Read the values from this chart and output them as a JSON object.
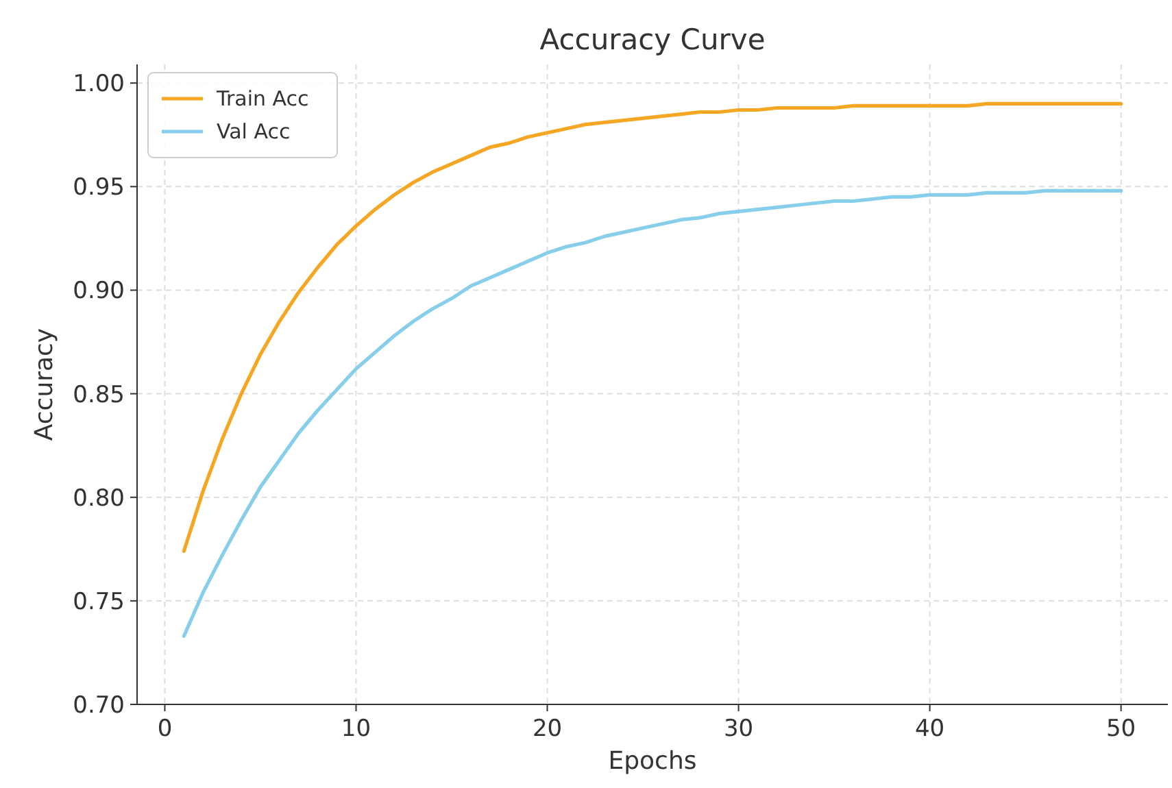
{
  "chart_data": {
    "type": "line",
    "title": "Accuracy Curve",
    "xlabel": "Epochs",
    "ylabel": "Accuracy",
    "x": [
      1,
      2,
      3,
      4,
      5,
      6,
      7,
      8,
      9,
      10,
      11,
      12,
      13,
      14,
      15,
      16,
      17,
      18,
      19,
      20,
      21,
      22,
      23,
      24,
      25,
      26,
      27,
      28,
      29,
      30,
      31,
      32,
      33,
      34,
      35,
      36,
      37,
      38,
      39,
      40,
      41,
      42,
      43,
      44,
      45,
      46,
      47,
      48,
      49,
      50
    ],
    "series": [
      {
        "name": "Train Acc",
        "color": "#f5a623",
        "values": [
          0.774,
          0.803,
          0.828,
          0.85,
          0.869,
          0.885,
          0.899,
          0.911,
          0.922,
          0.931,
          0.939,
          0.946,
          0.952,
          0.957,
          0.961,
          0.965,
          0.969,
          0.971,
          0.974,
          0.976,
          0.978,
          0.98,
          0.981,
          0.982,
          0.983,
          0.984,
          0.985,
          0.986,
          0.986,
          0.987,
          0.987,
          0.988,
          0.988,
          0.988,
          0.988,
          0.989,
          0.989,
          0.989,
          0.989,
          0.989,
          0.989,
          0.989,
          0.99,
          0.99,
          0.99,
          0.99,
          0.99,
          0.99,
          0.99,
          0.99
        ]
      },
      {
        "name": "Val Acc",
        "color": "#87ceeb",
        "values": [
          0.733,
          0.754,
          0.772,
          0.789,
          0.805,
          0.818,
          0.831,
          0.842,
          0.852,
          0.862,
          0.87,
          0.878,
          0.885,
          0.891,
          0.896,
          0.902,
          0.906,
          0.91,
          0.914,
          0.918,
          0.921,
          0.923,
          0.926,
          0.928,
          0.93,
          0.932,
          0.934,
          0.935,
          0.937,
          0.938,
          0.939,
          0.94,
          0.941,
          0.942,
          0.943,
          0.943,
          0.944,
          0.945,
          0.945,
          0.946,
          0.946,
          0.946,
          0.947,
          0.947,
          0.947,
          0.948,
          0.948,
          0.948,
          0.948,
          0.948
        ]
      }
    ],
    "xlim": [
      -1.45,
      52.45
    ],
    "xticks": [
      0,
      10,
      20,
      30,
      40,
      50
    ],
    "ylim": [
      0.7,
      1.009
    ],
    "yticks": [
      {
        "value": 0.7,
        "label": "0.70"
      },
      0.75,
      {
        "value": 0.8,
        "label": "0.80"
      },
      0.85,
      {
        "value": 0.9,
        "label": "0.90"
      },
      0.95,
      {
        "value": 1.0,
        "label": "1.00"
      }
    ],
    "grid": true,
    "legend": "top left",
    "line_style": "solid",
    "marker": "none"
  }
}
